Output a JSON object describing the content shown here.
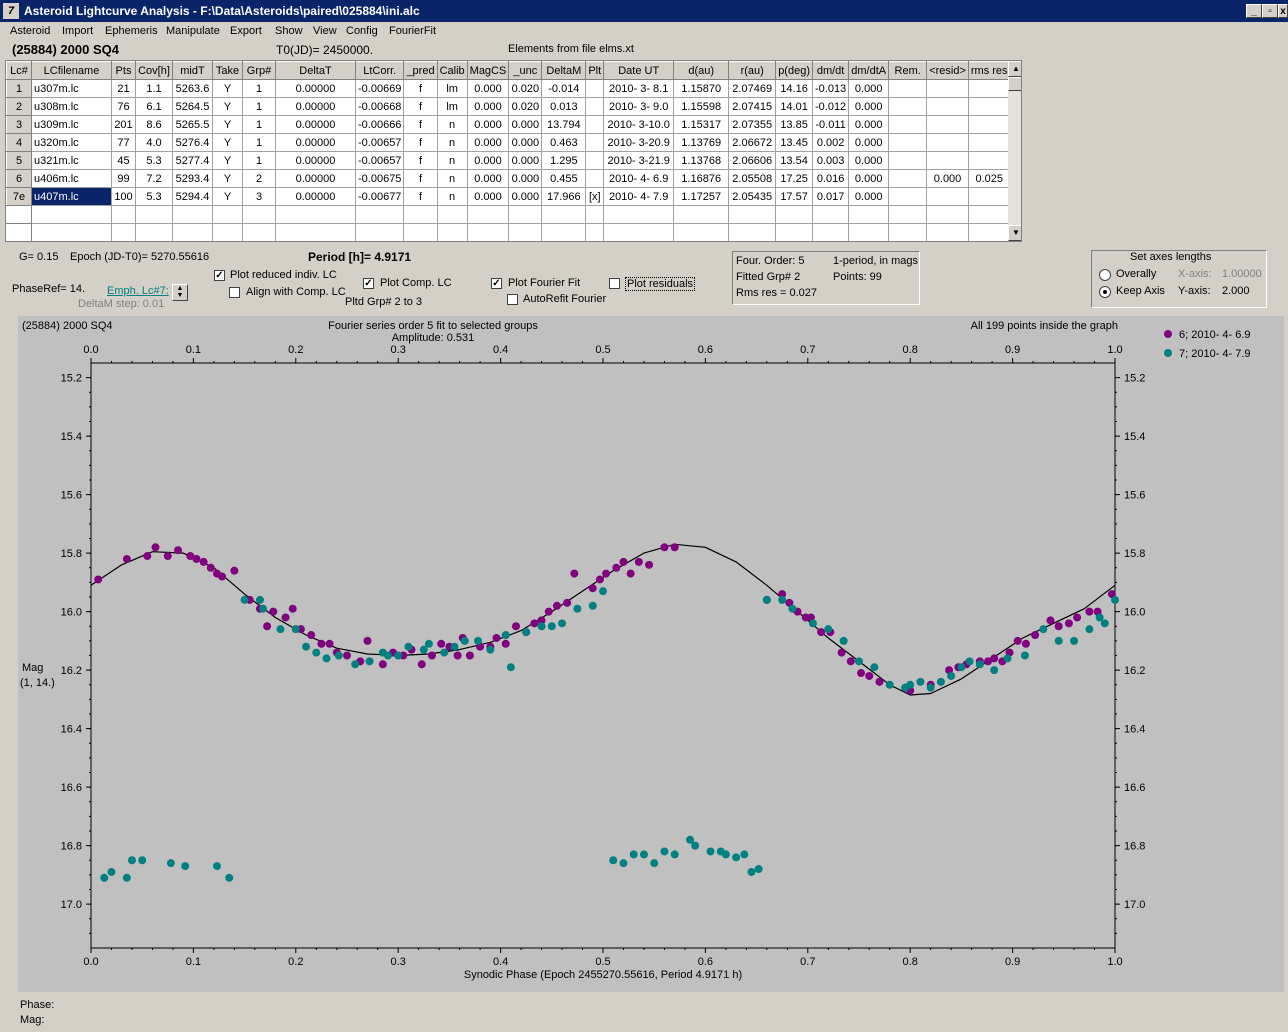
{
  "window": {
    "title": "Asteroid Lightcurve Analysis - F:\\Data\\Asteroids\\paired\\025884\\ini.alc",
    "app_icon": "7",
    "btn_min": "_",
    "btn_max": "▫",
    "btn_close": "x"
  },
  "menu": [
    "Asteroid",
    "Import",
    "Ephemeris",
    "Manipulate",
    "Export",
    "Show",
    "View",
    "Config",
    "FourierFit"
  ],
  "info": {
    "object": "(25884) 2000 SQ4",
    "t0": "T0(JD)= 2450000.",
    "elements": "Elements from file elms.xt"
  },
  "grid": {
    "columns": [
      "Lc#",
      "LCfilename",
      "Pts",
      "Cov[h]",
      "midT",
      "Take",
      "Grp#",
      "DeltaT",
      "LtCorr.",
      "_pred",
      "Calib",
      "MagCS",
      "_unc",
      "DeltaM",
      "Plt",
      "Date UT",
      "d(au)",
      "r(au)",
      "p(deg)",
      "dm/dt",
      "dm/dtA",
      "Rem.",
      "<resid>",
      "rms res"
    ],
    "rows": [
      [
        "1",
        "u307m.lc",
        "21",
        "1.1",
        "5263.6",
        "Y",
        "1",
        "0.00000",
        "-0.00669",
        "f",
        "lm",
        "0.000",
        "0.020",
        "-0.014",
        "",
        "2010- 3- 8.1",
        "1.15870",
        "2.07469",
        "14.16",
        "-0.013",
        "0.000",
        "",
        "",
        ""
      ],
      [
        "2",
        "u308m.lc",
        "76",
        "6.1",
        "5264.5",
        "Y",
        "1",
        "0.00000",
        "-0.00668",
        "f",
        "lm",
        "0.000",
        "0.020",
        "0.013",
        "",
        "2010- 3- 9.0",
        "1.15598",
        "2.07415",
        "14.01",
        "-0.012",
        "0.000",
        "",
        "",
        ""
      ],
      [
        "3",
        "u309m.lc",
        "201",
        "8.6",
        "5265.5",
        "Y",
        "1",
        "0.00000",
        "-0.00666",
        "f",
        "n",
        "0.000",
        "0.000",
        "13.794",
        "",
        "2010- 3-10.0",
        "1.15317",
        "2.07355",
        "13.85",
        "-0.011",
        "0.000",
        "",
        "",
        ""
      ],
      [
        "4",
        "u320m.lc",
        "77",
        "4.0",
        "5276.4",
        "Y",
        "1",
        "0.00000",
        "-0.00657",
        "f",
        "n",
        "0.000",
        "0.000",
        "0.463",
        "",
        "2010- 3-20.9",
        "1.13769",
        "2.06672",
        "13.45",
        "0.002",
        "0.000",
        "",
        "",
        ""
      ],
      [
        "5",
        "u321m.lc",
        "45",
        "5.3",
        "5277.4",
        "Y",
        "1",
        "0.00000",
        "-0.00657",
        "f",
        "n",
        "0.000",
        "0.000",
        "1.295",
        "",
        "2010- 3-21.9",
        "1.13768",
        "2.06606",
        "13.54",
        "0.003",
        "0.000",
        "",
        "",
        ""
      ],
      [
        "6",
        "u406m.lc",
        "99",
        "7.2",
        "5293.4",
        "Y",
        "2",
        "0.00000",
        "-0.00675",
        "f",
        "n",
        "0.000",
        "0.000",
        "0.455",
        "",
        "2010- 4- 6.9",
        "1.16876",
        "2.05508",
        "17.25",
        "0.016",
        "0.000",
        "",
        "0.000",
        "0.025"
      ],
      [
        "7e",
        "u407m.lc",
        "100",
        "5.3",
        "5294.4",
        "Y",
        "3",
        "0.00000",
        "-0.00677",
        "f",
        "n",
        "0.000",
        "0.000",
        "17.966",
        "[x]",
        "2010- 4- 7.9",
        "1.17257",
        "2.05435",
        "17.57",
        "0.017",
        "0.000",
        "",
        "",
        ""
      ]
    ]
  },
  "controls": {
    "g": "G= 0.15",
    "epoch": "Epoch (JD-T0)= 5270.55616",
    "period": "Period [h]= 4.9171",
    "phaseref": "PhaseRef= 14.",
    "emph": "Emph. Lc#7:",
    "deltam_step": "DeltaM step: 0.01",
    "plot_reduced": "Plot reduced indiv. LC",
    "align_comp": "Align with Comp. LC",
    "plot_comp": "Plot Comp. LC",
    "pltd_grp": "Pltd Grp#  2  to   3",
    "plot_fourier": "Plot Fourier Fit",
    "autorefit": "AutoRefit Fourier",
    "plot_resid": "Plot residuals",
    "check_mark": "✓"
  },
  "fourier_box": {
    "order": "Four. Order:  5",
    "one_period": "1-period, in mags",
    "fitted": "Fitted Grp# 2",
    "points": "Points: 99",
    "rms": "Rms res     = 0.027"
  },
  "axes_box": {
    "title": "Set axes lengths",
    "overally": "Overally",
    "keep_axis": "Keep Axis",
    "xaxis_label": "X-axis:",
    "xaxis_val": "1.00000",
    "yaxis_label": "Y-axis:",
    "yaxis_val": "2.000"
  },
  "chart_data": {
    "type": "scatter",
    "title": "(25884) 2000 SQ4",
    "subtitle": "Fourier series order 5 fit to selected groups",
    "amplitude": "Amplitude: 0.531",
    "inside_note": "All 199 points inside the graph",
    "xlabel": "Synodic Phase (Epoch 2455270.55616, Period 4.9171 h)",
    "ylabel": "Mag",
    "ylabel2": "(1, 14.)",
    "xlim": [
      0.0,
      1.0
    ],
    "ylim": [
      17.15,
      15.15
    ],
    "xticks": [
      "0.0",
      "0.1",
      "0.2",
      "0.3",
      "0.4",
      "0.5",
      "0.6",
      "0.7",
      "0.8",
      "0.9",
      "1.0"
    ],
    "yticks": [
      15.2,
      15.4,
      15.6,
      15.8,
      16.0,
      16.2,
      16.4,
      16.6,
      16.8,
      17.0
    ],
    "legend_position": "top-right",
    "colors": {
      "series1": "#800080",
      "series2": "#008080",
      "fit": "#000000"
    },
    "series": [
      {
        "name": "6; 2010- 4- 6.9",
        "color": "#800080",
        "points": [
          [
            0.007,
            15.89
          ],
          [
            0.035,
            15.82
          ],
          [
            0.055,
            15.81
          ],
          [
            0.063,
            15.78
          ],
          [
            0.075,
            15.81
          ],
          [
            0.085,
            15.79
          ],
          [
            0.097,
            15.81
          ],
          [
            0.103,
            15.82
          ],
          [
            0.11,
            15.83
          ],
          [
            0.117,
            15.85
          ],
          [
            0.123,
            15.87
          ],
          [
            0.128,
            15.88
          ],
          [
            0.14,
            15.86
          ],
          [
            0.155,
            15.96
          ],
          [
            0.165,
            15.99
          ],
          [
            0.172,
            16.05
          ],
          [
            0.178,
            16.0
          ],
          [
            0.19,
            16.02
          ],
          [
            0.197,
            15.99
          ],
          [
            0.205,
            16.06
          ],
          [
            0.215,
            16.08
          ],
          [
            0.225,
            16.11
          ],
          [
            0.233,
            16.11
          ],
          [
            0.24,
            16.14
          ],
          [
            0.25,
            16.15
          ],
          [
            0.263,
            16.17
          ],
          [
            0.27,
            16.1
          ],
          [
            0.285,
            16.18
          ],
          [
            0.295,
            16.14
          ],
          [
            0.305,
            16.15
          ],
          [
            0.313,
            16.13
          ],
          [
            0.323,
            16.18
          ],
          [
            0.333,
            16.15
          ],
          [
            0.342,
            16.11
          ],
          [
            0.35,
            16.12
          ],
          [
            0.358,
            16.15
          ],
          [
            0.363,
            16.09
          ],
          [
            0.37,
            16.15
          ],
          [
            0.38,
            16.12
          ],
          [
            0.39,
            16.12
          ],
          [
            0.396,
            16.09
          ],
          [
            0.405,
            16.11
          ],
          [
            0.415,
            16.05
          ],
          [
            0.425,
            16.07
          ],
          [
            0.433,
            16.04
          ],
          [
            0.44,
            16.03
          ],
          [
            0.447,
            16.0
          ],
          [
            0.455,
            15.98
          ],
          [
            0.465,
            15.97
          ],
          [
            0.472,
            15.87
          ],
          [
            0.49,
            15.92
          ],
          [
            0.497,
            15.89
          ],
          [
            0.503,
            15.87
          ],
          [
            0.513,
            15.85
          ],
          [
            0.52,
            15.83
          ],
          [
            0.527,
            15.87
          ],
          [
            0.535,
            15.83
          ],
          [
            0.545,
            15.84
          ],
          [
            0.56,
            15.78
          ],
          [
            0.57,
            15.78
          ],
          [
            0.66,
            15.96
          ],
          [
            0.675,
            15.94
          ],
          [
            0.682,
            15.97
          ],
          [
            0.69,
            16.0
          ],
          [
            0.698,
            16.02
          ],
          [
            0.703,
            16.02
          ],
          [
            0.713,
            16.07
          ],
          [
            0.722,
            16.07
          ],
          [
            0.733,
            16.14
          ],
          [
            0.742,
            16.17
          ],
          [
            0.752,
            16.21
          ],
          [
            0.76,
            16.22
          ],
          [
            0.77,
            16.24
          ],
          [
            0.8,
            16.27
          ],
          [
            0.82,
            16.25
          ],
          [
            0.838,
            16.2
          ],
          [
            0.847,
            16.19
          ],
          [
            0.855,
            16.18
          ],
          [
            0.868,
            16.17
          ],
          [
            0.876,
            16.17
          ],
          [
            0.882,
            16.16
          ],
          [
            0.89,
            16.17
          ],
          [
            0.897,
            16.14
          ],
          [
            0.905,
            16.1
          ],
          [
            0.913,
            16.11
          ],
          [
            0.922,
            16.08
          ],
          [
            0.937,
            16.03
          ],
          [
            0.945,
            16.05
          ],
          [
            0.955,
            16.04
          ],
          [
            0.963,
            16.02
          ],
          [
            0.975,
            16.0
          ],
          [
            0.983,
            16.0
          ],
          [
            0.997,
            15.94
          ]
        ]
      },
      {
        "name": "7; 2010- 4- 7.9",
        "color": "#008080",
        "points": [
          [
            0.013,
            16.91
          ],
          [
            0.02,
            16.89
          ],
          [
            0.035,
            16.91
          ],
          [
            0.04,
            16.85
          ],
          [
            0.05,
            16.85
          ],
          [
            0.078,
            16.86
          ],
          [
            0.092,
            16.87
          ],
          [
            0.123,
            16.87
          ],
          [
            0.135,
            16.91
          ],
          [
            0.15,
            15.96
          ],
          [
            0.165,
            15.96
          ],
          [
            0.168,
            15.99
          ],
          [
            0.185,
            16.06
          ],
          [
            0.2,
            16.06
          ],
          [
            0.21,
            16.12
          ],
          [
            0.22,
            16.14
          ],
          [
            0.23,
            16.16
          ],
          [
            0.242,
            16.15
          ],
          [
            0.258,
            16.18
          ],
          [
            0.272,
            16.17
          ],
          [
            0.285,
            16.14
          ],
          [
            0.29,
            16.15
          ],
          [
            0.3,
            16.15
          ],
          [
            0.31,
            16.12
          ],
          [
            0.325,
            16.13
          ],
          [
            0.33,
            16.11
          ],
          [
            0.345,
            16.14
          ],
          [
            0.355,
            16.12
          ],
          [
            0.365,
            16.1
          ],
          [
            0.378,
            16.1
          ],
          [
            0.39,
            16.13
          ],
          [
            0.405,
            16.08
          ],
          [
            0.41,
            16.19
          ],
          [
            0.425,
            16.07
          ],
          [
            0.44,
            16.05
          ],
          [
            0.45,
            16.05
          ],
          [
            0.46,
            16.04
          ],
          [
            0.475,
            15.99
          ],
          [
            0.49,
            15.98
          ],
          [
            0.5,
            15.93
          ],
          [
            0.51,
            16.85
          ],
          [
            0.52,
            16.86
          ],
          [
            0.53,
            16.83
          ],
          [
            0.54,
            16.83
          ],
          [
            0.55,
            16.86
          ],
          [
            0.56,
            16.82
          ],
          [
            0.57,
            16.83
          ],
          [
            0.585,
            16.78
          ],
          [
            0.59,
            16.8
          ],
          [
            0.605,
            16.82
          ],
          [
            0.615,
            16.82
          ],
          [
            0.62,
            16.83
          ],
          [
            0.63,
            16.84
          ],
          [
            0.638,
            16.83
          ],
          [
            0.645,
            16.89
          ],
          [
            0.652,
            16.88
          ],
          [
            0.66,
            15.96
          ],
          [
            0.675,
            15.96
          ],
          [
            0.685,
            15.99
          ],
          [
            0.705,
            16.04
          ],
          [
            0.72,
            16.06
          ],
          [
            0.735,
            16.1
          ],
          [
            0.75,
            16.17
          ],
          [
            0.765,
            16.19
          ],
          [
            0.78,
            16.25
          ],
          [
            0.795,
            16.26
          ],
          [
            0.8,
            16.25
          ],
          [
            0.81,
            16.24
          ],
          [
            0.82,
            16.26
          ],
          [
            0.83,
            16.24
          ],
          [
            0.84,
            16.22
          ],
          [
            0.85,
            16.19
          ],
          [
            0.858,
            16.17
          ],
          [
            0.868,
            16.18
          ],
          [
            0.882,
            16.2
          ],
          [
            0.895,
            16.16
          ],
          [
            0.912,
            16.15
          ],
          [
            0.93,
            16.06
          ],
          [
            0.945,
            16.1
          ],
          [
            0.96,
            16.1
          ],
          [
            0.975,
            16.06
          ],
          [
            0.985,
            16.02
          ],
          [
            0.99,
            16.04
          ],
          [
            1.0,
            15.96
          ]
        ]
      }
    ]
  },
  "status": {
    "phase": "Phase:",
    "mag": "Mag:"
  }
}
